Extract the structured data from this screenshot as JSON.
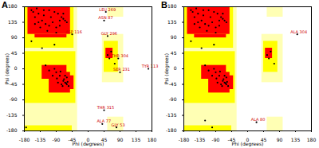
{
  "chart_data": [
    {
      "type": "scatter",
      "title": "A",
      "x_label": "Phi (degrees)",
      "y_label": "Psi (degrees)",
      "xlim": [
        -180,
        180
      ],
      "ylim": [
        -180,
        180
      ],
      "xticks": [
        -180,
        -135,
        -90,
        -45,
        0,
        45,
        90,
        135,
        180
      ],
      "yticks": [
        -180,
        -135,
        -90,
        -45,
        0,
        45,
        90,
        135,
        180
      ],
      "color": "#000000",
      "regions": [
        {
          "color": "#ffffb4",
          "rects": [
            [
              -180,
              -30,
              -180,
              180
            ],
            [
              40,
              100,
              -40,
              100
            ],
            [
              55,
              100,
              -180,
              -140
            ],
            [
              55,
              100,
              150,
              180
            ]
          ]
        },
        {
          "color": "#ffff00",
          "rects": [
            [
              -180,
              -40,
              60,
              180
            ],
            [
              -180,
              -35,
              -100,
              50
            ],
            [
              -180,
              -45,
              -180,
              -165
            ],
            [
              45,
              85,
              -10,
              80
            ]
          ]
        },
        {
          "color": "#ff0000",
          "rects": [
            [
              -170,
              -50,
              100,
              180
            ],
            [
              -150,
              -60,
              90,
              100
            ],
            [
              -110,
              -50,
              -70,
              -10
            ],
            [
              -130,
              -60,
              -30,
              10
            ],
            [
              -80,
              -40,
              -60,
              -20
            ],
            [
              50,
              70,
              30,
              60
            ]
          ]
        }
      ],
      "points": {
        "x": [
          -150,
          -140,
          -130,
          -120,
          -110,
          -125,
          -100,
          -90,
          -80,
          -75,
          -70,
          -65,
          -140,
          -155,
          -160,
          -115,
          -105,
          -95,
          -85,
          -135,
          -60,
          -70,
          -145,
          -125,
          -110,
          -90,
          -80,
          -150,
          -65,
          -60,
          -70,
          -62,
          -68,
          -75,
          -80,
          -90,
          -95,
          -55,
          -58,
          -72,
          -85,
          -100,
          -110,
          -120,
          -65,
          -60,
          -78,
          -88,
          -160,
          -175,
          -130,
          -95,
          55,
          60,
          65,
          75
        ],
        "y": [
          150,
          160,
          140,
          130,
          125,
          155,
          135,
          120,
          140,
          150,
          145,
          140,
          135,
          165,
          170,
          110,
          150,
          165,
          160,
          120,
          135,
          160,
          175,
          170,
          170,
          105,
          125,
          130,
          -40,
          -45,
          -35,
          -42,
          -30,
          -45,
          -20,
          -10,
          0,
          -50,
          -38,
          -50,
          -40,
          -20,
          -5,
          10,
          -20,
          -25,
          -8,
          -28,
          80,
          -170,
          60,
          70,
          40,
          30,
          50,
          15
        ]
      },
      "annotations": [
        {
          "text": "ASP 116",
          "x": -45,
          "y": 100
        },
        {
          "text": "LEU 269",
          "x": 50,
          "y": 165
        },
        {
          "text": "ASN 87",
          "x": 45,
          "y": 140
        },
        {
          "text": "GLY 296",
          "x": 55,
          "y": 95
        },
        {
          "text": "THR 304",
          "x": 85,
          "y": 30
        },
        {
          "text": "SER 231",
          "x": 90,
          "y": -10
        },
        {
          "text": "TYR 113",
          "x": 170,
          "y": 0
        },
        {
          "text": "THR 315",
          "x": 45,
          "y": -120
        },
        {
          "text": "ALA 77",
          "x": 40,
          "y": -160
        },
        {
          "text": "GLY 53",
          "x": 80,
          "y": -170
        }
      ]
    },
    {
      "type": "scatter",
      "title": "B",
      "x_label": "Phi (degrees)",
      "y_label": "Psi (degrees)",
      "xlim": [
        -180,
        180
      ],
      "ylim": [
        -180,
        180
      ],
      "xticks": [
        -180,
        -135,
        -90,
        -45,
        0,
        45,
        90,
        135,
        180
      ],
      "yticks": [
        -180,
        -135,
        -90,
        -45,
        0,
        45,
        90,
        135,
        180
      ],
      "color": "#000000",
      "regions": [
        {
          "color": "#ffffb4",
          "rects": [
            [
              -180,
              -30,
              -180,
              180
            ],
            [
              40,
              100,
              -40,
              100
            ],
            [
              55,
              100,
              -180,
              -140
            ],
            [
              55,
              100,
              150,
              180
            ]
          ]
        },
        {
          "color": "#ffff00",
          "rects": [
            [
              -180,
              -40,
              60,
              180
            ],
            [
              -180,
              -35,
              -100,
              50
            ],
            [
              -180,
              -45,
              -180,
              -165
            ],
            [
              45,
              85,
              -10,
              80
            ]
          ]
        },
        {
          "color": "#ff0000",
          "rects": [
            [
              -170,
              -50,
              100,
              180
            ],
            [
              -150,
              -60,
              90,
              100
            ],
            [
              -110,
              -50,
              -70,
              -10
            ],
            [
              -130,
              -60,
              -30,
              10
            ],
            [
              -80,
              -40,
              -60,
              -20
            ],
            [
              50,
              70,
              30,
              60
            ]
          ]
        }
      ],
      "points": {
        "x": [
          -150,
          -140,
          -130,
          -120,
          -110,
          -125,
          -100,
          -90,
          -80,
          -75,
          -70,
          -65,
          -140,
          -155,
          -160,
          -115,
          -105,
          -95,
          -85,
          -135,
          -60,
          -70,
          -145,
          -125,
          -110,
          -90,
          -80,
          -150,
          -65,
          -60,
          -70,
          -62,
          -68,
          -75,
          -80,
          -90,
          -95,
          -55,
          -58,
          -72,
          -85,
          -100,
          -110,
          -120,
          -65,
          -60,
          -78,
          -88,
          -160,
          -130,
          -95,
          55,
          60,
          65,
          75,
          -100,
          -120
        ],
        "y": [
          150,
          160,
          140,
          130,
          125,
          155,
          135,
          120,
          140,
          150,
          145,
          140,
          135,
          165,
          170,
          110,
          150,
          165,
          160,
          120,
          135,
          160,
          175,
          170,
          170,
          105,
          125,
          130,
          -40,
          -45,
          -35,
          -42,
          -30,
          -45,
          -20,
          -10,
          0,
          -50,
          -38,
          -50,
          -40,
          -20,
          -5,
          10,
          -20,
          -25,
          -8,
          -28,
          80,
          60,
          70,
          40,
          30,
          50,
          15,
          -170,
          -150
        ]
      },
      "annotations": [
        {
          "text": "ALA 304",
          "x": 140,
          "y": 100
        },
        {
          "text": "ALA 80",
          "x": 25,
          "y": -155
        }
      ]
    }
  ]
}
